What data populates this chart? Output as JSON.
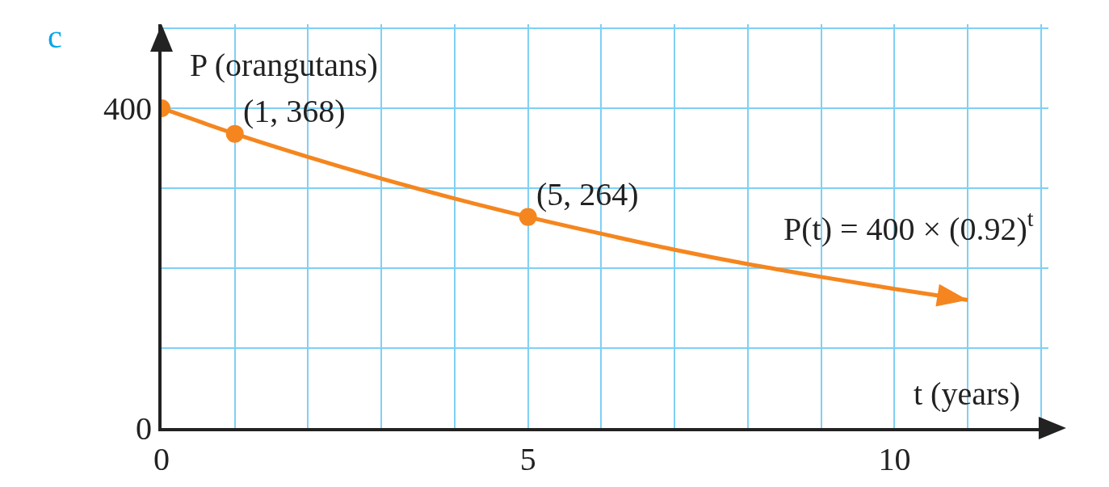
{
  "chart_data": {
    "type": "line",
    "xlabel": "t (years)",
    "ylabel": "P (orangutans)",
    "annotations": [
      "c",
      {
        "text": "(1, 368)",
        "x": 1,
        "y": 368
      },
      {
        "text": "(5, 264)",
        "x": 5,
        "y": 264
      },
      "P(t) = 400 × (0.92)$^{t}$"
    ],
    "series": [
      {
        "color": "#f5861f",
        "line_style": "solid",
        "x": [
          0,
          1,
          2,
          3,
          4,
          5,
          6,
          7,
          8,
          9,
          10,
          11
        ],
        "values": [
          400,
          368,
          339,
          312,
          287,
          264,
          243,
          223,
          205,
          189,
          174,
          160
        ]
      },
      {
        "type": "scatter",
        "color": "#f5861f",
        "marker": "circle",
        "x": [
          0,
          1,
          5
        ],
        "values": [
          400,
          368,
          264
        ]
      }
    ],
    "xlim": [
      0,
      12.1
    ],
    "ylim": [
      0,
      505
    ],
    "xticks": [
      0,
      {
        "value": 1,
        "label": null
      },
      {
        "value": 2,
        "label": null
      },
      {
        "value": 3,
        "label": null
      },
      {
        "value": 4,
        "label": null
      },
      5,
      {
        "value": 6,
        "label": null
      },
      {
        "value": 7,
        "label": null
      },
      {
        "value": 8,
        "label": null
      },
      {
        "value": 9,
        "label": null
      },
      10,
      {
        "value": 11,
        "label": null
      },
      {
        "value": 12,
        "label": null
      }
    ],
    "yticks": [
      0,
      {
        "value": 100,
        "label": null
      },
      {
        "value": 200,
        "label": null
      },
      {
        "value": 300,
        "label": null
      },
      400,
      {
        "value": 500,
        "label": null
      }
    ],
    "grid": true
  }
}
